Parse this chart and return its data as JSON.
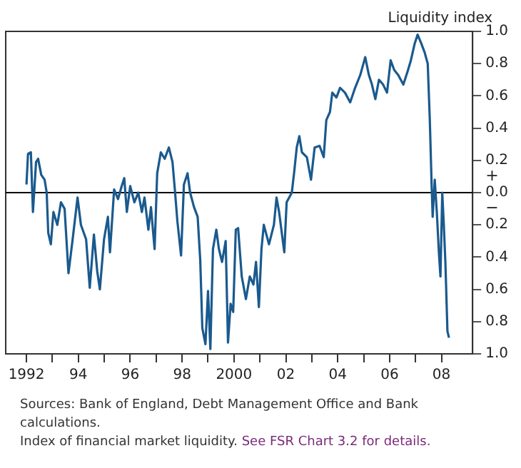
{
  "chart_data": {
    "type": "line",
    "ylabel": "Liquidity index",
    "x": [
      1992.0,
      1992.06,
      1992.17,
      1992.25,
      1992.37,
      1992.45,
      1992.57,
      1992.7,
      1992.78,
      1992.84,
      1992.94,
      1993.04,
      1993.19,
      1993.33,
      1993.47,
      1993.62,
      1993.78,
      1993.97,
      1994.1,
      1994.3,
      1994.44,
      1994.6,
      1994.73,
      1994.83,
      1994.99,
      1995.14,
      1995.22,
      1995.38,
      1995.53,
      1995.67,
      1995.77,
      1995.87,
      1996.0,
      1996.16,
      1996.31,
      1996.45,
      1996.55,
      1996.7,
      1996.8,
      1996.94,
      1997.04,
      1997.18,
      1997.33,
      1997.49,
      1997.63,
      1997.72,
      1997.82,
      1997.96,
      1998.07,
      1998.21,
      1998.31,
      1998.46,
      1998.6,
      1998.7,
      1998.78,
      1998.9,
      1999.0,
      1999.09,
      1999.19,
      1999.32,
      1999.42,
      1999.54,
      1999.68,
      1999.77,
      1999.87,
      1999.97,
      2000.07,
      2000.16,
      2000.3,
      2000.46,
      2000.61,
      2000.75,
      2000.85,
      2000.96,
      2001.06,
      2001.15,
      2001.35,
      2001.54,
      2001.64,
      2001.74,
      2001.94,
      2002.03,
      2002.23,
      2002.33,
      2002.42,
      2002.52,
      2002.62,
      2002.81,
      2002.97,
      2003.11,
      2003.3,
      2003.46,
      2003.56,
      2003.7,
      2003.79,
      2003.95,
      2004.09,
      2004.28,
      2004.48,
      2004.67,
      2004.87,
      2005.06,
      2005.2,
      2005.32,
      2005.45,
      2005.59,
      2005.75,
      2005.9,
      2006.04,
      2006.18,
      2006.33,
      2006.53,
      2006.69,
      2006.82,
      2006.96,
      2007.08,
      2007.21,
      2007.35,
      2007.47,
      2007.55,
      2007.62,
      2007.66,
      2007.74,
      2007.82,
      2007.9,
      2007.96,
      2008.03,
      2008.09,
      2008.15,
      2008.23,
      2008.29
    ],
    "values": [
      0.05,
      0.24,
      0.25,
      -0.12,
      0.19,
      0.21,
      0.11,
      0.08,
      0,
      -0.25,
      -0.32,
      -0.12,
      -0.2,
      -0.06,
      -0.1,
      -0.5,
      -0.29,
      -0.03,
      -0.2,
      -0.29,
      -0.59,
      -0.26,
      -0.49,
      -0.6,
      -0.29,
      -0.15,
      -0.37,
      0.02,
      -0.04,
      0.04,
      0.09,
      -0.12,
      0.04,
      -0.06,
      0,
      -0.12,
      -0.03,
      -0.23,
      -0.09,
      -0.35,
      0.12,
      0.25,
      0.21,
      0.28,
      0.19,
      0.02,
      -0.18,
      -0.39,
      0.05,
      0.12,
      0,
      -0.09,
      -0.15,
      -0.42,
      -0.84,
      -0.94,
      -0.61,
      -0.97,
      -0.35,
      -0.23,
      -0.35,
      -0.43,
      -0.3,
      -0.93,
      -0.69,
      -0.74,
      -0.23,
      -0.22,
      -0.52,
      -0.66,
      -0.52,
      -0.57,
      -0.43,
      -0.71,
      -0.35,
      -0.2,
      -0.32,
      -0.2,
      -0.03,
      -0.12,
      -0.37,
      -0.06,
      0,
      0.14,
      0.28,
      0.35,
      0.25,
      0.22,
      0.08,
      0.28,
      0.29,
      0.22,
      0.45,
      0.5,
      0.62,
      0.59,
      0.65,
      0.62,
      0.56,
      0.65,
      0.73,
      0.84,
      0.73,
      0.67,
      0.58,
      0.7,
      0.67,
      0.62,
      0.82,
      0.76,
      0.73,
      0.67,
      0.75,
      0.82,
      0.92,
      0.98,
      0.93,
      0.87,
      0.8,
      0.45,
      0.05,
      -0.15,
      0.08,
      -0.12,
      -0.37,
      -0.52,
      0,
      -0.2,
      -0.43,
      -0.86,
      -0.9
    ],
    "color": "#1a5a8e",
    "xlim": [
      1991.2,
      2009.2
    ],
    "xticks": [
      1992,
      {
        "value": 1993,
        "label": null
      },
      {
        "value": 1994,
        "label": "94"
      },
      {
        "value": 1995,
        "label": null
      },
      {
        "value": 1996,
        "label": "96"
      },
      {
        "value": 1997,
        "label": null
      },
      {
        "value": 1998,
        "label": "98"
      },
      {
        "value": 1999,
        "label": null
      },
      2000,
      {
        "value": 2001,
        "label": null
      },
      {
        "value": 2002,
        "label": "02"
      },
      {
        "value": 2003,
        "label": null
      },
      {
        "value": 2004,
        "label": "04"
      },
      {
        "value": 2005,
        "label": null
      },
      {
        "value": 2006,
        "label": "06"
      },
      {
        "value": 2007,
        "label": null
      },
      {
        "value": 2008,
        "label": "08"
      }
    ],
    "ylim": [
      -1,
      1
    ],
    "yticks": [
      {
        "value": -1,
        "label": "1.0"
      },
      {
        "value": -0.8,
        "label": "0.8"
      },
      {
        "value": -0.6,
        "label": "0.6"
      },
      {
        "value": -0.4,
        "label": "0.4"
      },
      {
        "value": -0.2,
        "label": "0.2"
      },
      {
        "value": 0,
        "label": "0.0"
      },
      0.2,
      0.4,
      0.6,
      0.8,
      {
        "value": 1,
        "label": "1.0"
      }
    ],
    "ref_lines": [
      {
        "axis": "y",
        "value": 0,
        "color": "#000000"
      }
    ],
    "grid": false,
    "legend": false,
    "marker": "none",
    "line_style": "solid",
    "annotations": [
      "+",
      "−",
      "Sources:  Bank of England, Debt Management Office and Bank calculations.",
      "Index of financial market liquidity.",
      "See FSR Chart 3.2 for details."
    ]
  }
}
